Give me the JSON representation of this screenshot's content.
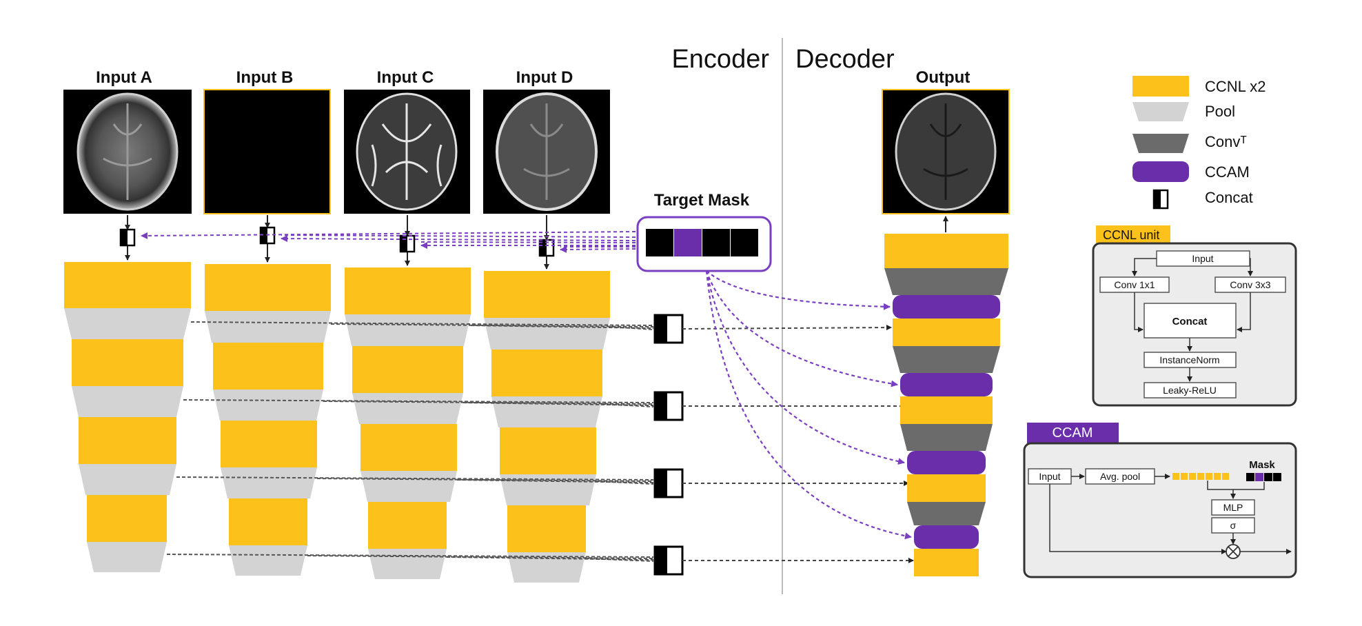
{
  "inputs": [
    {
      "label": "Input A"
    },
    {
      "label": "Input B"
    },
    {
      "label": "Input C"
    },
    {
      "label": "Input D"
    }
  ],
  "output_label": "Output",
  "target_mask_label": "Target Mask",
  "encoder_label": "Encoder",
  "decoder_label": "Decoder",
  "legend": {
    "ccnl": "CCNL x2",
    "pool": "Pool",
    "convt": "Convᵀ",
    "ccam": "CCAM",
    "concat": "Concat"
  },
  "ccnl_unit": {
    "title": "CCNL unit",
    "input": "Input",
    "conv1": "Conv 1x1",
    "conv3": "Conv 3x3",
    "concat": "Concat",
    "norm": "InstanceNorm",
    "act": "Leaky-ReLU"
  },
  "ccam": {
    "title": "CCAM",
    "input": "Input",
    "avgpool": "Avg. pool",
    "mask": "Mask",
    "mlp": "MLP",
    "sigma": "σ"
  },
  "colors": {
    "ccnl": "#fcc21b",
    "pool": "#d3d3d3",
    "convt": "#6b6b6b",
    "ccam": "#6a2eaa",
    "border": "#333333"
  }
}
